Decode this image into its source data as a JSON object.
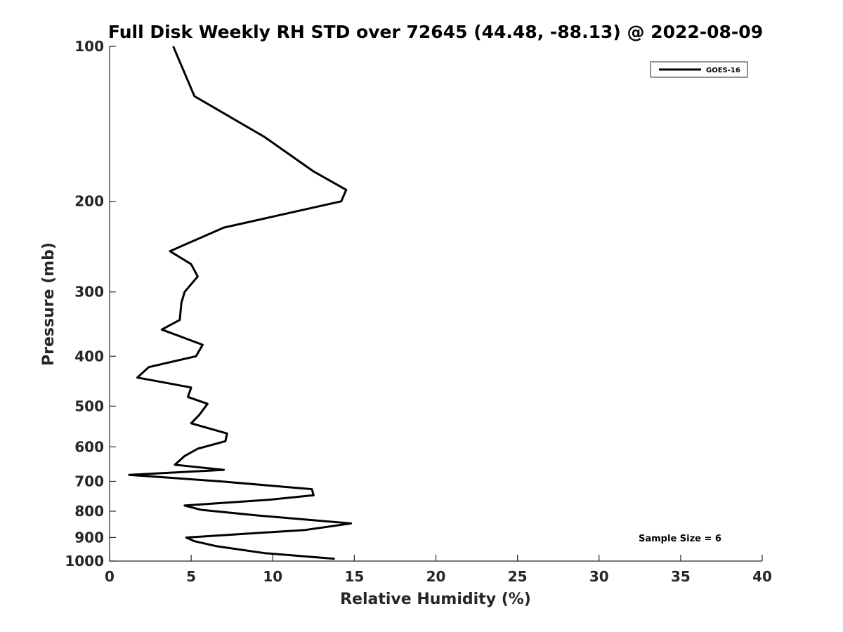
{
  "chart_data": {
    "type": "line",
    "title": "Full Disk Weekly RH STD over 72645 (44.48, -88.13) @ 2022-08-09",
    "xlabel": "Relative Humidity (%)",
    "ylabel": "Pressure (mb)",
    "xlim": [
      0,
      40
    ],
    "ylim": [
      100,
      1000
    ],
    "yscale": "log",
    "yreversed": true,
    "grid": false,
    "legend_position": "top-right",
    "x_ticks": [
      0,
      5,
      10,
      15,
      20,
      25,
      30,
      35,
      40
    ],
    "y_ticks": [
      100,
      200,
      300,
      400,
      500,
      600,
      700,
      800,
      900,
      1000
    ],
    "annotation": "Sample Size = 6",
    "series": [
      {
        "name": "GOES-16",
        "color": "#000000",
        "points": [
          [
            3.9,
            100
          ],
          [
            5.2,
            125
          ],
          [
            9.5,
            150
          ],
          [
            12.5,
            175
          ],
          [
            14.5,
            190
          ],
          [
            14.2,
            200
          ],
          [
            7.0,
            225
          ],
          [
            3.7,
            250
          ],
          [
            5.0,
            265
          ],
          [
            5.4,
            280
          ],
          [
            4.6,
            300
          ],
          [
            4.4,
            315
          ],
          [
            4.3,
            340
          ],
          [
            3.2,
            355
          ],
          [
            5.7,
            380
          ],
          [
            5.3,
            400
          ],
          [
            2.4,
            420
          ],
          [
            1.7,
            440
          ],
          [
            5.0,
            460
          ],
          [
            4.8,
            480
          ],
          [
            6.0,
            495
          ],
          [
            5.5,
            520
          ],
          [
            5.0,
            540
          ],
          [
            7.2,
            565
          ],
          [
            7.1,
            585
          ],
          [
            5.4,
            605
          ],
          [
            4.6,
            625
          ],
          [
            4.0,
            650
          ],
          [
            7.0,
            665
          ],
          [
            1.2,
            680
          ],
          [
            6.8,
            700
          ],
          [
            12.4,
            725
          ],
          [
            12.5,
            745
          ],
          [
            9.8,
            760
          ],
          [
            4.6,
            780
          ],
          [
            5.6,
            795
          ],
          [
            9.0,
            815
          ],
          [
            14.8,
            845
          ],
          [
            12.0,
            870
          ],
          [
            4.7,
            900
          ],
          [
            5.2,
            915
          ],
          [
            6.5,
            935
          ],
          [
            9.5,
            965
          ],
          [
            13.8,
            990
          ]
        ]
      }
    ]
  }
}
